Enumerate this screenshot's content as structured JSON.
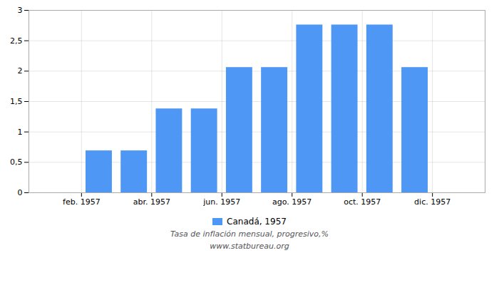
{
  "chart_data": {
    "type": "bar",
    "subtitle": "Tasa de inflación mensual, progresivo,%",
    "caption": "www.statbureau.org",
    "x": [
      2,
      3,
      4,
      5,
      6,
      7,
      8,
      9,
      10,
      11
    ],
    "series": [
      {
        "name": "Canadá, 1957",
        "color": "#4f97f5",
        "values": [
          0.69,
          0.69,
          1.38,
          1.38,
          2.06,
          2.06,
          2.76,
          2.76,
          2.76,
          2.06
        ]
      }
    ],
    "xlim": [
      0,
      13
    ],
    "xticks": [
      {
        "value": 1.5,
        "label": "feb. 1957"
      },
      {
        "value": 3.5,
        "label": "abr. 1957"
      },
      {
        "value": 5.5,
        "label": "jun. 1957"
      },
      {
        "value": 7.5,
        "label": "ago. 1957"
      },
      {
        "value": 9.5,
        "label": "oct. 1957"
      },
      {
        "value": 11.5,
        "label": "dic. 1957"
      }
    ],
    "ylim": [
      0,
      3.0
    ],
    "yticks": [
      0,
      {
        "value": 0.5,
        "label": "0,5"
      },
      1,
      {
        "value": 1.5,
        "label": "1,5"
      },
      2,
      {
        "value": 2.5,
        "label": "2,5"
      },
      3
    ],
    "grid": true,
    "legend": "bottom"
  }
}
